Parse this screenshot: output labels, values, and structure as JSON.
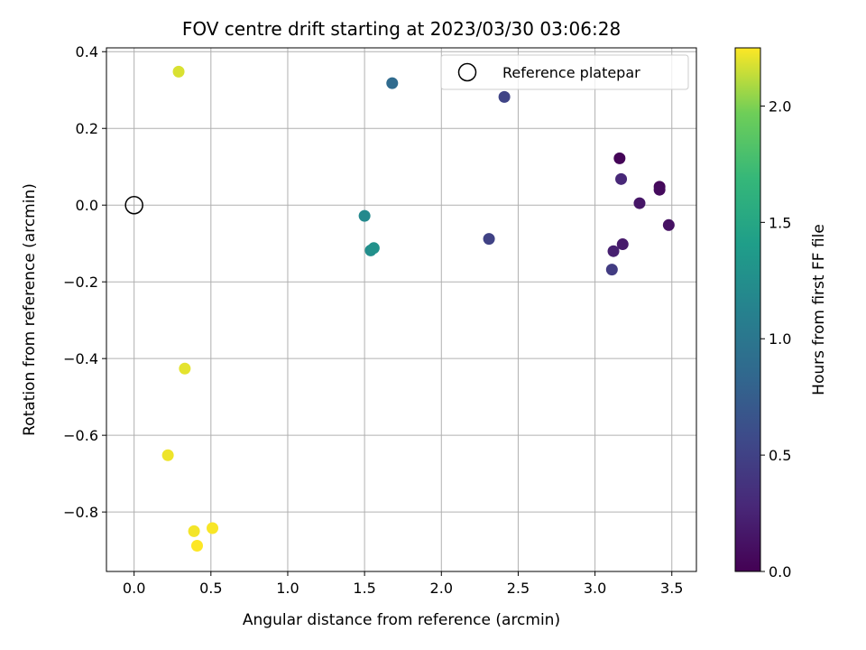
{
  "chart_data": {
    "type": "scatter",
    "title": "FOV centre drift starting at 2023/03/30 03:06:28",
    "xlabel": "Angular distance from reference (arcmin)",
    "ylabel": "Rotation from reference (arcmin)",
    "xlim": [
      -0.18,
      3.66
    ],
    "ylim": [
      -0.955,
      0.41
    ],
    "x_ticks": [
      0.0,
      0.5,
      1.0,
      1.5,
      2.0,
      2.5,
      3.0,
      3.5
    ],
    "x_tick_labels": [
      "0.0",
      "0.5",
      "1.0",
      "1.5",
      "2.0",
      "2.5",
      "3.0",
      "3.5"
    ],
    "y_ticks": [
      0.4,
      0.2,
      0.0,
      -0.2,
      -0.4,
      -0.6,
      -0.8
    ],
    "y_tick_labels": [
      "0.4",
      "0.2",
      "0.0",
      "−0.2",
      "−0.4",
      "−0.6",
      "−0.8"
    ],
    "grid": true,
    "legend": {
      "placement": "top-right",
      "entries": [
        "Reference platepar"
      ]
    },
    "colorbar": {
      "label": "Hours from first FF file",
      "colormap": "viridis",
      "range": [
        0.0,
        2.25
      ],
      "ticks": [
        0.0,
        0.5,
        1.0,
        1.5,
        2.0
      ],
      "tick_labels": [
        "0.0",
        "0.5",
        "1.0",
        "1.5",
        "2.0"
      ]
    },
    "reference_point": {
      "name": "Reference platepar",
      "x": 0.0,
      "y": 0.0
    },
    "points": [
      {
        "x": 3.16,
        "y": 0.122,
        "c": 0.02
      },
      {
        "x": 3.42,
        "y": 0.048,
        "c": 0.05
      },
      {
        "x": 3.42,
        "y": 0.04,
        "c": 0.07
      },
      {
        "x": 3.48,
        "y": -0.052,
        "c": 0.12
      },
      {
        "x": 3.29,
        "y": 0.005,
        "c": 0.15
      },
      {
        "x": 3.18,
        "y": -0.102,
        "c": 0.18
      },
      {
        "x": 3.12,
        "y": -0.12,
        "c": 0.22
      },
      {
        "x": 3.17,
        "y": 0.068,
        "c": 0.28
      },
      {
        "x": 3.11,
        "y": -0.168,
        "c": 0.45
      },
      {
        "x": 2.31,
        "y": -0.088,
        "c": 0.5
      },
      {
        "x": 2.41,
        "y": 0.282,
        "c": 0.52
      },
      {
        "x": 1.68,
        "y": 0.318,
        "c": 0.88
      },
      {
        "x": 1.5,
        "y": -0.028,
        "c": 1.2
      },
      {
        "x": 1.54,
        "y": -0.118,
        "c": 1.25
      },
      {
        "x": 1.56,
        "y": -0.112,
        "c": 1.28
      },
      {
        "x": 0.29,
        "y": 0.348,
        "c": 2.18
      },
      {
        "x": 0.33,
        "y": -0.426,
        "c": 2.2
      },
      {
        "x": 0.22,
        "y": -0.652,
        "c": 2.22
      },
      {
        "x": 0.39,
        "y": -0.85,
        "c": 2.23
      },
      {
        "x": 0.51,
        "y": -0.842,
        "c": 2.24
      },
      {
        "x": 0.41,
        "y": -0.888,
        "c": 2.25
      }
    ]
  }
}
